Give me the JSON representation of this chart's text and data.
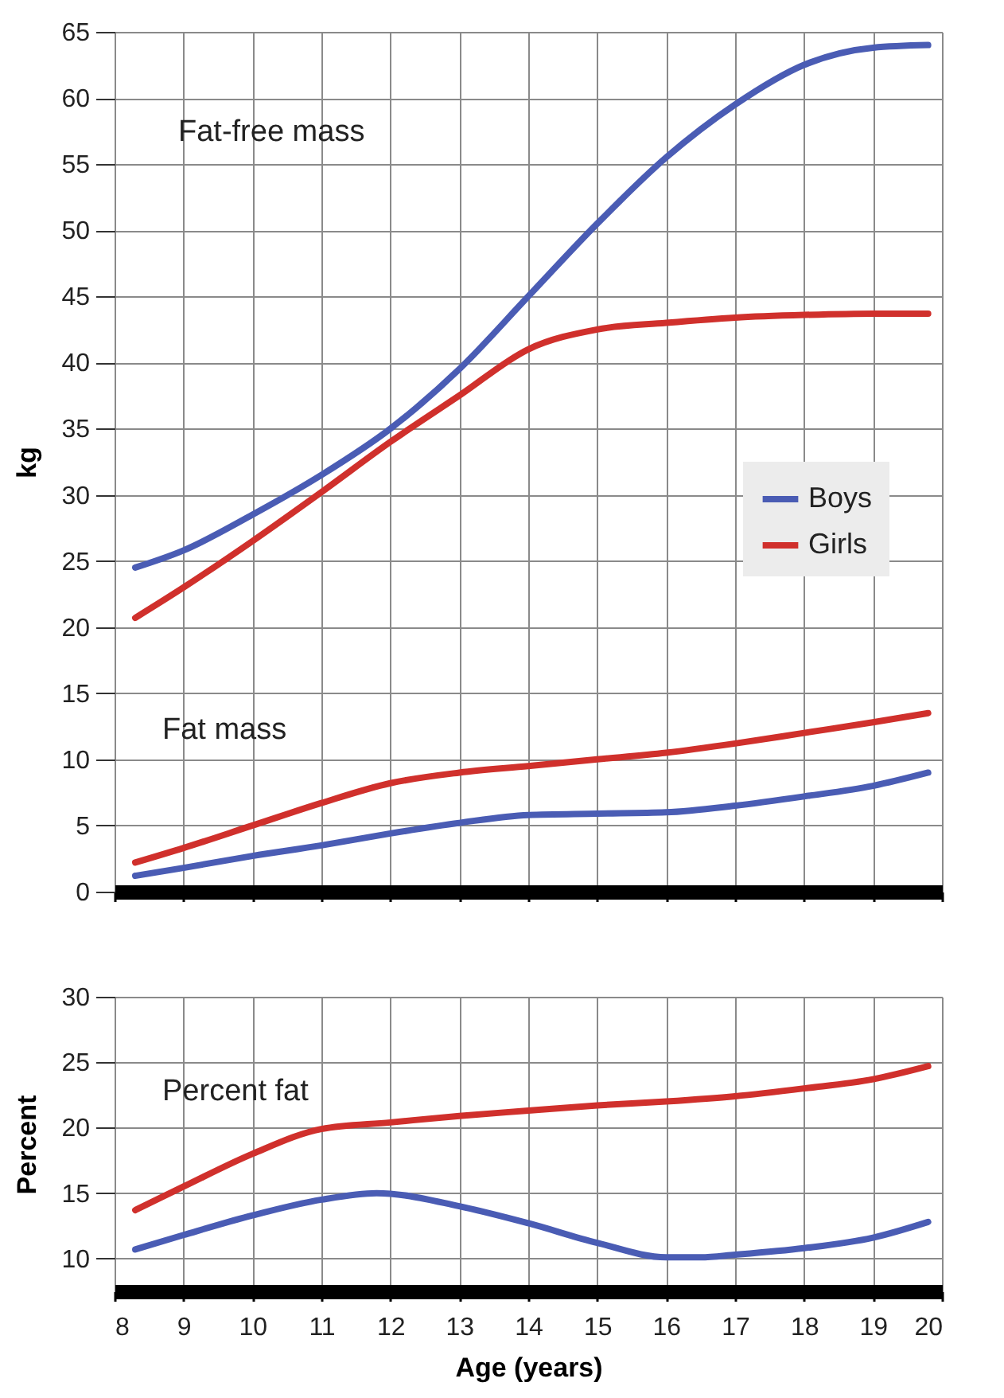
{
  "chart_data": [
    {
      "type": "line",
      "ylabel": "kg",
      "annotations": [
        "Fat-free mass",
        "Fat mass"
      ],
      "xlim": [
        8,
        20
      ],
      "xticks": [
        8,
        9,
        10,
        11,
        12,
        13,
        14,
        15,
        16,
        17,
        18,
        19,
        20
      ],
      "ylim": [
        0,
        65
      ],
      "yticks": [
        0,
        5,
        10,
        15,
        20,
        25,
        30,
        35,
        40,
        45,
        50,
        55,
        60,
        65
      ],
      "grid": true,
      "legend": "right",
      "tick_labels": "y",
      "series": [
        {
          "name": "Boys",
          "color": "#4a5cb4",
          "x": [
            8.3,
            9,
            10,
            11,
            12,
            13,
            14,
            15,
            16,
            17,
            18,
            19,
            19.8
          ],
          "values": [
            24.5,
            25.8,
            28.5,
            31.5,
            35,
            39.5,
            45,
            50.5,
            55.5,
            59.5,
            62.5,
            63.8,
            64
          ]
        },
        {
          "name": "Girls",
          "color": "#d0302c",
          "x": [
            8.3,
            9,
            10,
            11,
            12,
            13,
            14,
            15,
            16,
            17,
            18,
            19,
            19.8
          ],
          "values": [
            20.7,
            23,
            26.5,
            30.2,
            34,
            37.5,
            41,
            42.5,
            43,
            43.4,
            43.6,
            43.7,
            43.7
          ]
        },
        {
          "color": "#4a5cb4",
          "x": [
            8.3,
            9,
            10,
            11,
            12,
            13,
            14,
            15,
            16,
            17,
            18,
            19,
            19.8
          ],
          "values": [
            1.2,
            1.8,
            2.7,
            3.5,
            4.4,
            5.2,
            5.8,
            5.9,
            6,
            6.5,
            7.2,
            8,
            9
          ]
        },
        {
          "color": "#d0302c",
          "x": [
            8.3,
            9,
            10,
            11,
            12,
            13,
            14,
            15,
            16,
            17,
            18,
            19,
            19.8
          ],
          "values": [
            2.2,
            3.3,
            5,
            6.7,
            8.2,
            9,
            9.5,
            10,
            10.5,
            11.2,
            12,
            12.8,
            13.5
          ]
        }
      ]
    },
    {
      "type": "line",
      "xlabel": "Age (years)",
      "ylabel": "Percent",
      "annotations": [
        "Percent fat"
      ],
      "xlim": [
        8,
        20
      ],
      "xticks": [
        8,
        9,
        10,
        11,
        12,
        13,
        14,
        15,
        16,
        17,
        18,
        19,
        20
      ],
      "ylim": [
        7.5,
        30
      ],
      "yticks": [
        10,
        15,
        20,
        25,
        30
      ],
      "grid": true,
      "series": [
        {
          "color": "#d0302c",
          "x": [
            8.3,
            9,
            10,
            11,
            12,
            13,
            14,
            15,
            16,
            17,
            18,
            19,
            19.8
          ],
          "values": [
            13.7,
            15.5,
            18,
            19.9,
            20.4,
            20.9,
            21.3,
            21.7,
            22,
            22.4,
            23,
            23.7,
            24.7
          ]
        },
        {
          "color": "#4a5cb4",
          "x": [
            8.3,
            9,
            10,
            11,
            11.8,
            13,
            14,
            15,
            16,
            16.5,
            17,
            18,
            19,
            19.8
          ],
          "values": [
            10.7,
            11.8,
            13.3,
            14.5,
            15,
            14,
            12.7,
            11.2,
            10.1,
            10.1,
            10.3,
            10.8,
            11.6,
            12.8
          ]
        }
      ]
    }
  ]
}
